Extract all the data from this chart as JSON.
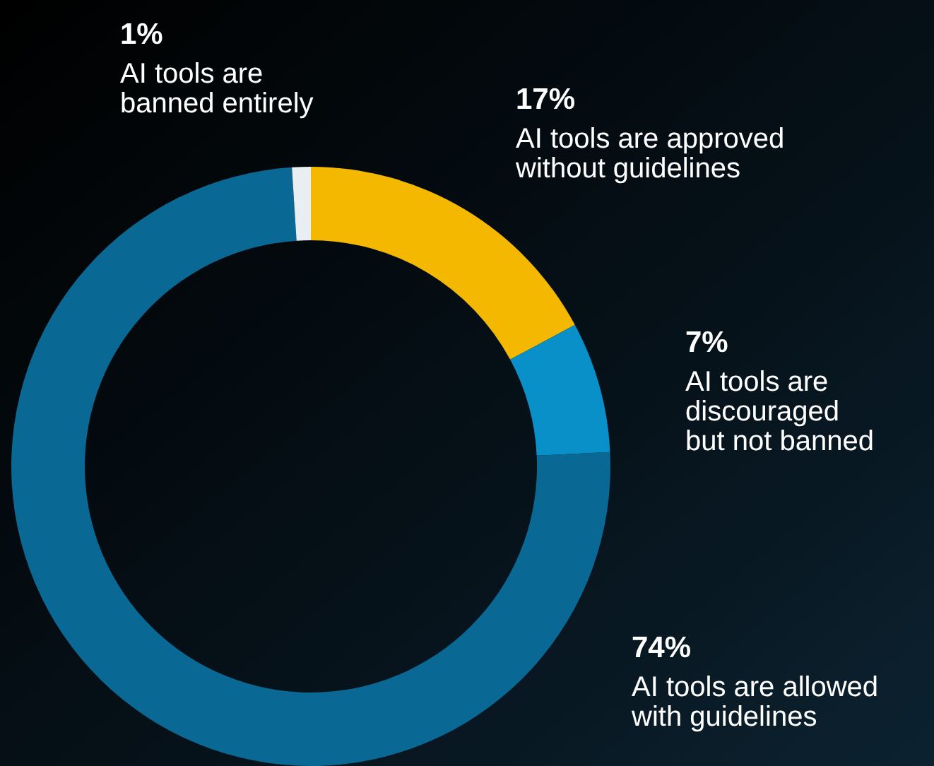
{
  "chart_data": {
    "type": "donut",
    "categories": [
      "AI tools are approved\nwithout guidelines",
      "AI tools are\ndiscouraged\nbut not banned",
      "AI tools are allowed\nwith guidelines",
      "AI tools are\nbanned entirely"
    ],
    "values": [
      17,
      7,
      74,
      1
    ],
    "value_labels": [
      "17%",
      "7%",
      "74%",
      "1%"
    ],
    "colors": [
      "#f5b800",
      "#0a90c8",
      "#0a6994",
      "#e8eef2"
    ],
    "legend": false
  }
}
